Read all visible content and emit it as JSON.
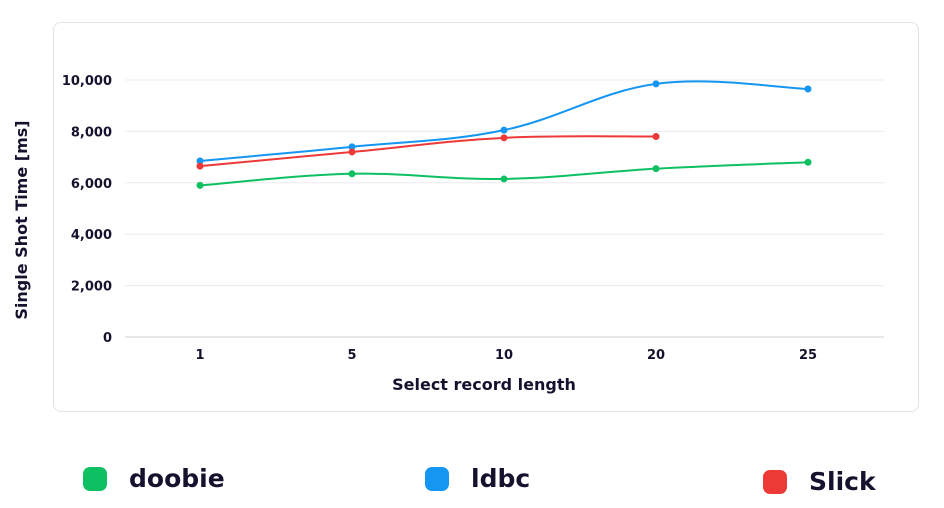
{
  "chart_data": {
    "type": "line",
    "title": "",
    "xlabel": "Select record length",
    "ylabel": "Single Shot Time [ms]",
    "categories": [
      "1",
      "5",
      "10",
      "20",
      "25"
    ],
    "ylim": [
      0,
      10000
    ],
    "yticks": [
      0,
      2000,
      4000,
      6000,
      8000,
      10000
    ],
    "ytick_labels": [
      "0",
      "2,000",
      "4,000",
      "6,000",
      "8,000",
      "10,000"
    ],
    "grid": true,
    "legend_placement": "bottom",
    "series": [
      {
        "name": "doobie",
        "color": "#0fc063",
        "values": [
          5900,
          6350,
          6150,
          6550,
          6800
        ]
      },
      {
        "name": "ldbc",
        "color": "#1596f2",
        "values": [
          6850,
          7400,
          8050,
          9850,
          9650
        ]
      },
      {
        "name": "Slick",
        "color": "#ee3939",
        "values": [
          6650,
          7200,
          7750,
          7800,
          null
        ]
      }
    ]
  }
}
